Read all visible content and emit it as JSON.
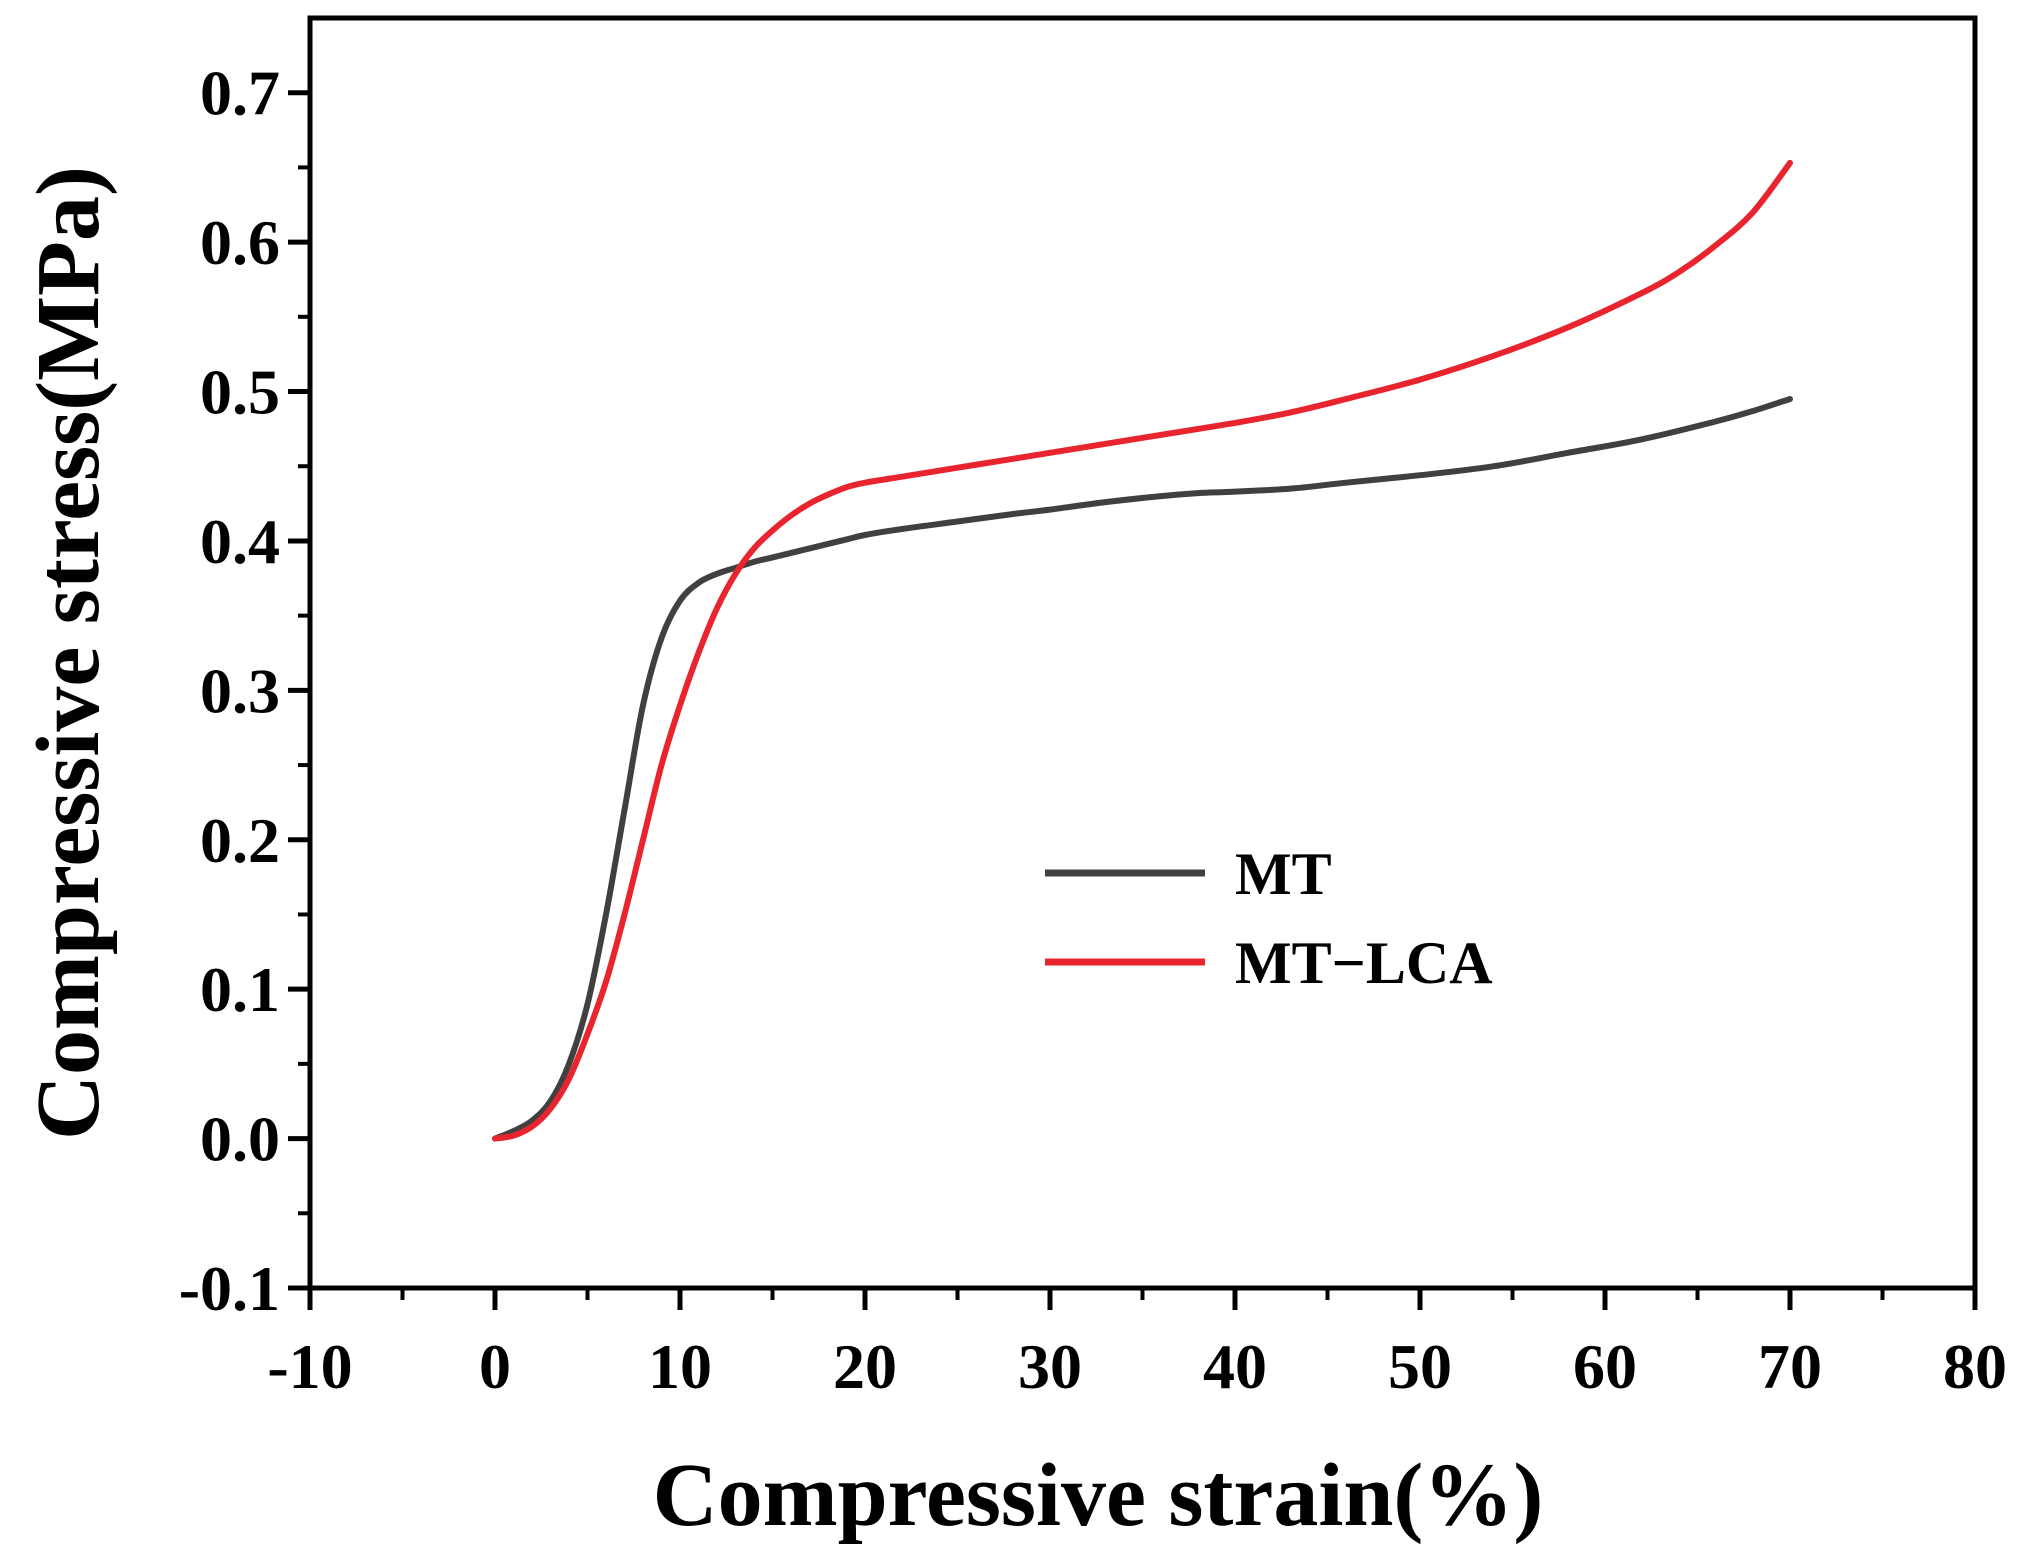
{
  "chart_data": {
    "type": "line",
    "title": "",
    "xlabel": "Compressive strain(%)",
    "ylabel": "Compressive stress(MPa)",
    "xlim": [
      -10,
      80
    ],
    "ylim": [
      -0.1,
      0.75
    ],
    "xticks": [
      -10,
      0,
      10,
      20,
      30,
      40,
      50,
      60,
      70,
      80
    ],
    "xtick_labels": [
      "-10",
      "0",
      "10",
      "20",
      "30",
      "40",
      "50",
      "60",
      "70",
      "80"
    ],
    "yticks": [
      -0.1,
      0.0,
      0.1,
      0.2,
      0.3,
      0.4,
      0.5,
      0.6,
      0.7
    ],
    "ytick_labels": [
      "-0.1",
      "0.0",
      "0.1",
      "0.2",
      "0.3",
      "0.4",
      "0.5",
      "0.6",
      "0.7"
    ],
    "grid": false,
    "legend_position": "center-right",
    "series": [
      {
        "name": "MT",
        "color": "#404040",
        "x": [
          0,
          1,
          2,
          3,
          4,
          5,
          6,
          7,
          8,
          9,
          10,
          11,
          12,
          13,
          14,
          15,
          16,
          17,
          18,
          19,
          20,
          22,
          25,
          28,
          30,
          33,
          36,
          38,
          40,
          43,
          46,
          50,
          54,
          58,
          62,
          66,
          68,
          70
        ],
        "y": [
          0.0,
          0.005,
          0.012,
          0.025,
          0.05,
          0.09,
          0.15,
          0.22,
          0.29,
          0.335,
          0.36,
          0.372,
          0.378,
          0.382,
          0.386,
          0.389,
          0.392,
          0.395,
          0.398,
          0.401,
          0.404,
          0.408,
          0.413,
          0.418,
          0.421,
          0.426,
          0.43,
          0.432,
          0.433,
          0.435,
          0.439,
          0.444,
          0.45,
          0.459,
          0.468,
          0.48,
          0.487,
          0.495
        ]
      },
      {
        "name": "MT−LCA",
        "color": "#e8252f",
        "x": [
          0,
          1,
          2,
          3,
          4,
          5,
          6,
          7,
          8,
          9,
          10,
          11,
          12,
          13,
          14,
          15,
          16,
          17,
          18,
          19,
          20,
          22,
          25,
          28,
          30,
          33,
          36,
          40,
          43,
          46,
          50,
          54,
          58,
          62,
          64,
          66,
          68,
          70
        ],
        "y": [
          0.0,
          0.002,
          0.008,
          0.02,
          0.04,
          0.07,
          0.105,
          0.15,
          0.2,
          0.25,
          0.29,
          0.325,
          0.355,
          0.378,
          0.395,
          0.407,
          0.417,
          0.425,
          0.431,
          0.436,
          0.439,
          0.443,
          0.449,
          0.455,
          0.459,
          0.465,
          0.471,
          0.479,
          0.486,
          0.495,
          0.508,
          0.524,
          0.543,
          0.566,
          0.58,
          0.598,
          0.62,
          0.653
        ]
      }
    ]
  }
}
